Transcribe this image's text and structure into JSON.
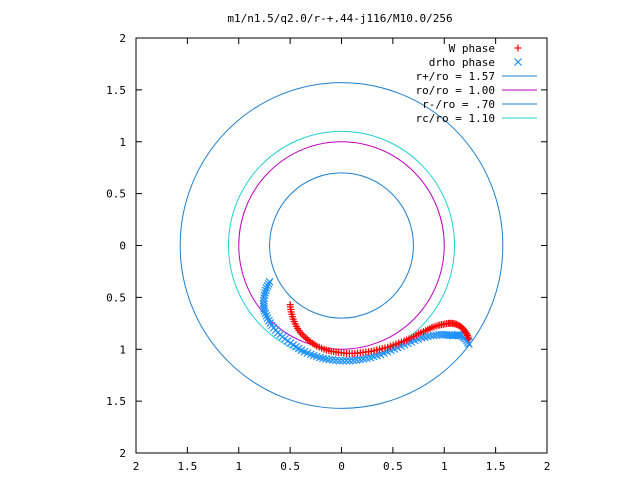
{
  "chart_data": {
    "type": "scatter",
    "title": "m1/n1.5/q2.0/r-+.44-j116/M10.0/256",
    "xlabel": "",
    "ylabel": "",
    "xlim": [
      -2,
      2
    ],
    "ylim": [
      -2,
      2
    ],
    "x_tick_values": [
      -2,
      -1.5,
      -1,
      -0.5,
      0,
      0.5,
      1,
      1.5,
      2
    ],
    "x_tick_labels": [
      "2",
      "1.5",
      "1",
      "0.5",
      "0",
      "0.5",
      "1",
      "1.5",
      "2"
    ],
    "y_tick_values": [
      2,
      1.5,
      1,
      0.5,
      0,
      -0.5,
      -1,
      -1.5,
      -2
    ],
    "y_tick_labels": [
      "2",
      "1.5",
      "1",
      "0.5",
      "0",
      "0.5",
      "1",
      "1.5",
      "2"
    ],
    "grid": false,
    "legend_position": "top-right",
    "circles": [
      {
        "name": "r+/ro = 1.57",
        "radius": 1.57,
        "color": "#1f7fcf"
      },
      {
        "name": "ro/ro = 1.00",
        "radius": 1.0,
        "color": "#c000c0"
      },
      {
        "name": "r-/ro = .70",
        "radius": 0.7,
        "color": "#1f7fcf"
      },
      {
        "name": "rc/ro = 1.10",
        "radius": 1.1,
        "color": "#20d0d0"
      }
    ],
    "series": [
      {
        "name": "W phase",
        "marker": "+",
        "color": "#ff0000",
        "x": [
          -0.5,
          -0.49,
          -0.47,
          -0.44,
          -0.4,
          -0.35,
          -0.3,
          -0.24,
          -0.17,
          -0.1,
          -0.03,
          0.05,
          0.13,
          0.21,
          0.29,
          0.37,
          0.45,
          0.53,
          0.61,
          0.68,
          0.75,
          0.82,
          0.88,
          0.94,
          0.99,
          1.04,
          1.08,
          1.12,
          1.16,
          1.19,
          1.22,
          1.24
        ],
        "y": [
          -0.57,
          -0.64,
          -0.71,
          -0.78,
          -0.84,
          -0.89,
          -0.93,
          -0.97,
          -1.0,
          -1.02,
          -1.03,
          -1.04,
          -1.04,
          -1.03,
          -1.02,
          -1.0,
          -0.98,
          -0.95,
          -0.92,
          -0.89,
          -0.85,
          -0.82,
          -0.79,
          -0.77,
          -0.76,
          -0.75,
          -0.75,
          -0.76,
          -0.78,
          -0.81,
          -0.85,
          -0.9
        ]
      },
      {
        "name": "drho phase",
        "marker": "x",
        "color": "#1e90ff",
        "x": [
          -0.7,
          -0.73,
          -0.75,
          -0.76,
          -0.75,
          -0.72,
          -0.68,
          -0.62,
          -0.55,
          -0.47,
          -0.39,
          -0.3,
          -0.21,
          -0.12,
          -0.02,
          0.08,
          0.18,
          0.28,
          0.38,
          0.48,
          0.58,
          0.68,
          0.78,
          0.87,
          0.95,
          1.02,
          1.08,
          1.13,
          1.17,
          1.21,
          1.24
        ],
        "y": [
          -0.35,
          -0.41,
          -0.48,
          -0.56,
          -0.63,
          -0.7,
          -0.77,
          -0.84,
          -0.9,
          -0.96,
          -1.01,
          -1.05,
          -1.08,
          -1.1,
          -1.11,
          -1.11,
          -1.1,
          -1.08,
          -1.05,
          -1.01,
          -0.97,
          -0.93,
          -0.89,
          -0.87,
          -0.86,
          -0.86,
          -0.87,
          -0.86,
          -0.87,
          -0.9,
          -0.95
        ]
      }
    ]
  }
}
